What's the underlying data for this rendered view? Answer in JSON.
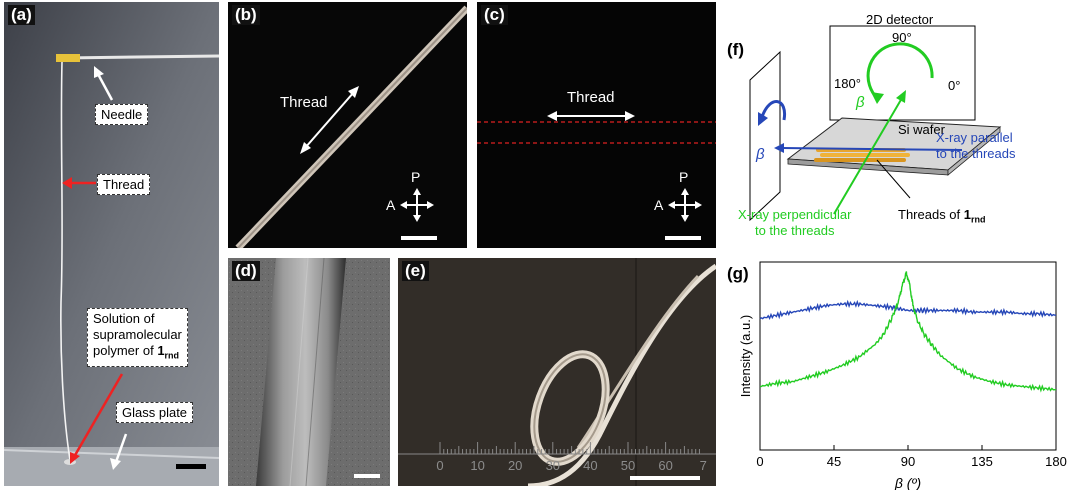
{
  "panels": {
    "a": {
      "label": "(a)",
      "callouts": {
        "needle": "Needle",
        "thread": "Thread",
        "solution_line1": "Solution of",
        "solution_line2": "supramolecular",
        "solution_line3": "polymer of ",
        "compound_number": "1",
        "compound_sub": "rnd",
        "glass": "Glass plate"
      }
    },
    "b": {
      "label": "(b)",
      "thread": "Thread",
      "polarizer": "P",
      "analyzer": "A"
    },
    "c": {
      "label": "(c)",
      "thread": "Thread",
      "polarizer": "P",
      "analyzer": "A"
    },
    "d": {
      "label": "(d)"
    },
    "e": {
      "label": "(e)",
      "ruler_ticks": [
        "0",
        "10",
        "20",
        "30",
        "40",
        "50",
        "60",
        "7"
      ]
    },
    "f": {
      "label": "(f)",
      "detector": "2D detector",
      "angle_90": "90°",
      "angle_180": "180°",
      "angle_0": "0°",
      "beta_green": "β",
      "beta_blue": "β",
      "wafer": "Si wafer",
      "xray_parallel_line1": "X-ray parallel",
      "xray_parallel_line2": "to the threads",
      "xray_perp_line1": "X-ray perpendicular",
      "xray_perp_line2": "to the threads",
      "threads_of": "Threads of ",
      "compound_number": "1",
      "compound_sub": "rnd"
    },
    "g": {
      "label": "(g)"
    }
  },
  "chart_data": {
    "type": "line",
    "xlabel": "β (º)",
    "ylabel": "Intensity (a.u.)",
    "xlim": [
      0,
      180
    ],
    "x_ticks": [
      "0",
      "45",
      "90",
      "135",
      "180"
    ],
    "y_ticks_labeled": false,
    "grid": false,
    "colors": {
      "blue": "#2647b8",
      "green": "#22cc22"
    },
    "series": [
      {
        "color": "#2647b8",
        "x": [
          0,
          10,
          20,
          30,
          40,
          50,
          60,
          70,
          80,
          85,
          90,
          95,
          100,
          110,
          120,
          130,
          140,
          150,
          160,
          170,
          180
        ],
        "y": [
          0.72,
          0.74,
          0.76,
          0.78,
          0.8,
          0.81,
          0.81,
          0.8,
          0.79,
          0.78,
          0.77,
          0.77,
          0.77,
          0.77,
          0.77,
          0.76,
          0.76,
          0.76,
          0.75,
          0.75,
          0.74
        ]
      },
      {
        "color": "#22cc22",
        "x": [
          0,
          10,
          20,
          30,
          40,
          50,
          60,
          70,
          75,
          80,
          84,
          87,
          89,
          91,
          93,
          96,
          100,
          105,
          110,
          120,
          130,
          140,
          150,
          160,
          170,
          180
        ],
        "y": [
          0.3,
          0.32,
          0.33,
          0.36,
          0.39,
          0.43,
          0.48,
          0.56,
          0.62,
          0.72,
          0.82,
          0.94,
          1.0,
          0.93,
          0.8,
          0.7,
          0.62,
          0.55,
          0.49,
          0.41,
          0.36,
          0.33,
          0.31,
          0.3,
          0.29,
          0.28
        ]
      }
    ]
  }
}
